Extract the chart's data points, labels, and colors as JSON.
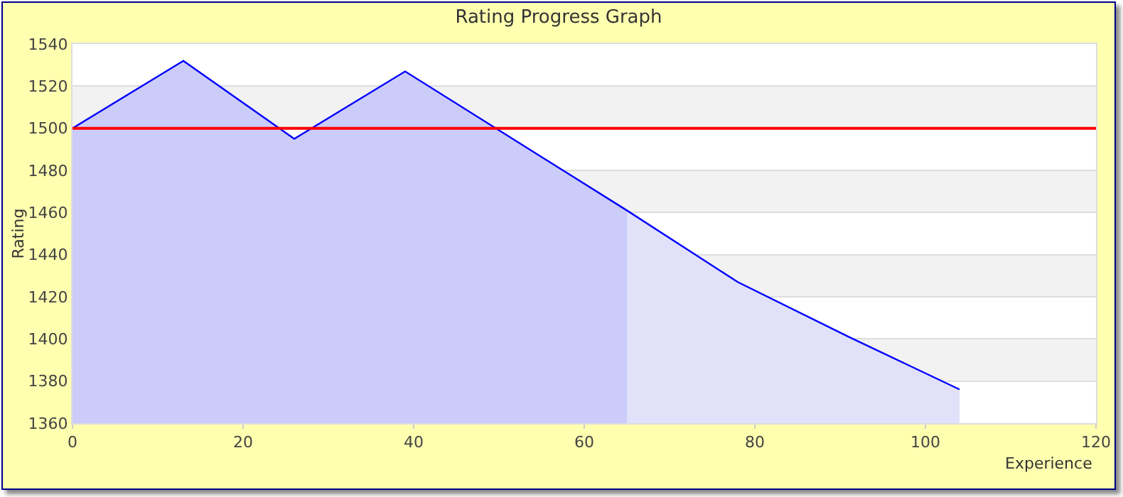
{
  "chart_data": {
    "type": "area",
    "title": "Rating Progress Graph",
    "xlabel": "Experience",
    "ylabel": "Rating",
    "xlim": [
      0,
      120
    ],
    "xticks": [
      0,
      20,
      40,
      60,
      80,
      100,
      120
    ],
    "ylim": [
      1360,
      1540
    ],
    "yticks": [
      1360,
      1380,
      1400,
      1420,
      1440,
      1460,
      1480,
      1500,
      1520,
      1540
    ],
    "grid": "y",
    "series": [
      {
        "color": "#ccccfa",
        "x": [
          0,
          13,
          26,
          39,
          52,
          65
        ],
        "values": [
          1500,
          1532,
          1495,
          1527,
          1494,
          1461
        ]
      },
      {
        "color": "#e1e1fa",
        "x": [
          65,
          78,
          91,
          104
        ],
        "values": [
          1461,
          1427,
          1401,
          1376
        ]
      },
      {
        "type": "line",
        "color": "#0000ff",
        "x": [
          0,
          13,
          26,
          39,
          52,
          65,
          78,
          91,
          104
        ],
        "values": [
          1500,
          1532,
          1495,
          1527,
          1494,
          1461,
          1427,
          1401,
          1376
        ]
      }
    ],
    "ref_lines": [
      {
        "axis": "y",
        "value": 1500,
        "color": "#ff0000"
      }
    ]
  }
}
